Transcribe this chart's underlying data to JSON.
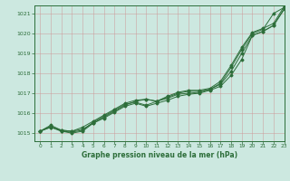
{
  "title": "Graphe pression niveau de la mer (hPa)",
  "bg_color": "#cce8e0",
  "grid_color": "#cc9999",
  "line_color": "#2d6e3a",
  "xlim": [
    -0.5,
    23
  ],
  "ylim": [
    1014.6,
    1021.4
  ],
  "xticks": [
    0,
    1,
    2,
    3,
    4,
    5,
    6,
    7,
    8,
    9,
    10,
    11,
    12,
    13,
    14,
    15,
    16,
    17,
    18,
    19,
    20,
    21,
    22,
    23
  ],
  "yticks": [
    1015,
    1016,
    1017,
    1018,
    1019,
    1020,
    1021
  ],
  "series": [
    [
      1015.1,
      1015.3,
      1015.15,
      1015.1,
      1015.2,
      1015.5,
      1015.8,
      1016.1,
      1016.4,
      1016.6,
      1016.7,
      1016.6,
      1016.8,
      1017.0,
      1017.1,
      1017.1,
      1017.2,
      1017.5,
      1018.3,
      1019.2,
      1020.0,
      1020.2,
      1021.0,
      1021.3
    ],
    [
      1015.1,
      1015.4,
      1015.15,
      1015.1,
      1015.3,
      1015.6,
      1015.9,
      1016.2,
      1016.5,
      1016.65,
      1016.7,
      1016.6,
      1016.85,
      1017.05,
      1017.15,
      1017.15,
      1017.25,
      1017.6,
      1018.4,
      1019.3,
      1020.05,
      1020.25,
      1020.5,
      1021.35
    ],
    [
      1015.1,
      1015.35,
      1015.1,
      1015.05,
      1015.15,
      1015.55,
      1015.85,
      1016.15,
      1016.45,
      1016.55,
      1016.4,
      1016.6,
      1016.75,
      1016.95,
      1017.0,
      1017.05,
      1017.2,
      1017.45,
      1018.1,
      1019.0,
      1019.9,
      1020.1,
      1020.4,
      1021.25
    ],
    [
      1015.1,
      1015.3,
      1015.1,
      1015.0,
      1015.1,
      1015.5,
      1015.75,
      1016.05,
      1016.35,
      1016.5,
      1016.35,
      1016.5,
      1016.65,
      1016.85,
      1016.95,
      1017.0,
      1017.15,
      1017.35,
      1017.9,
      1018.7,
      1019.9,
      1020.1,
      1020.4,
      1021.2
    ]
  ]
}
